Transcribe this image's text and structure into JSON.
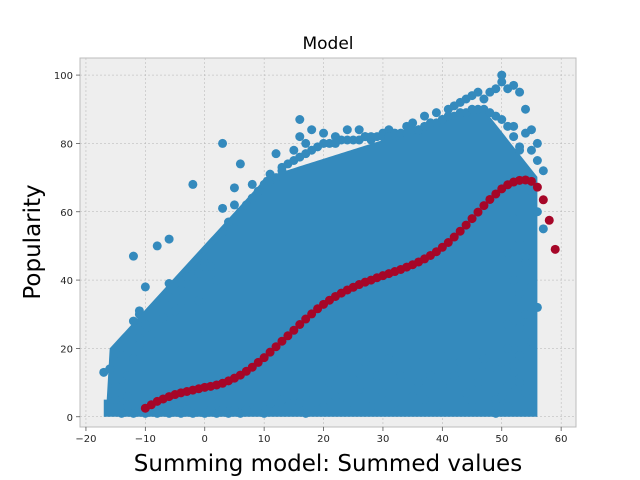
{
  "chart_data": {
    "type": "scatter",
    "title": "Model",
    "xlabel": "Summing model: Summed values",
    "ylabel": "Popularity",
    "xlim": [
      -21,
      62.5
    ],
    "ylim": [
      -3,
      105
    ],
    "x_ticks": [
      "−20",
      "−10",
      "0",
      "10",
      "20",
      "30",
      "40",
      "50",
      "60"
    ],
    "y_ticks": [
      "0",
      "20",
      "40",
      "60",
      "80",
      "100"
    ],
    "x_tick_values": [
      -20,
      -10,
      0,
      10,
      20,
      30,
      40,
      50,
      60
    ],
    "y_tick_values": [
      0,
      20,
      40,
      60,
      80,
      100
    ],
    "grid": true,
    "series": [
      {
        "color": "#348ABD",
        "role": "observations",
        "points": [
          [
            -17,
            13
          ],
          [
            -16,
            14
          ],
          [
            -12,
            47
          ],
          [
            -11,
            23
          ],
          [
            -11,
            30
          ],
          [
            -10,
            38
          ],
          [
            -8,
            50
          ],
          [
            -6,
            52
          ],
          [
            -6,
            39
          ],
          [
            -4,
            32
          ],
          [
            -2,
            68
          ],
          [
            -1,
            34
          ],
          [
            0,
            45
          ],
          [
            0,
            25
          ],
          [
            2,
            40
          ],
          [
            3,
            61
          ],
          [
            3,
            80
          ],
          [
            5,
            67
          ],
          [
            5,
            62
          ],
          [
            6,
            74
          ],
          [
            8,
            68
          ],
          [
            10,
            66
          ],
          [
            11,
            71
          ],
          [
            12,
            77
          ],
          [
            13,
            73
          ],
          [
            15,
            78
          ],
          [
            16,
            82
          ],
          [
            16,
            87
          ],
          [
            17,
            80
          ],
          [
            18,
            84
          ],
          [
            20,
            83
          ],
          [
            22,
            82
          ],
          [
            24,
            84
          ],
          [
            26,
            84
          ],
          [
            27,
            82
          ],
          [
            28,
            81
          ],
          [
            30,
            83
          ],
          [
            31,
            84
          ],
          [
            32,
            82
          ],
          [
            34,
            85
          ],
          [
            35,
            86
          ],
          [
            36,
            84
          ],
          [
            37,
            88
          ],
          [
            38,
            86
          ],
          [
            39,
            89
          ],
          [
            40,
            87
          ],
          [
            41,
            90
          ],
          [
            42,
            91
          ],
          [
            43,
            92
          ],
          [
            44,
            93
          ],
          [
            45,
            94
          ],
          [
            46,
            95
          ],
          [
            47,
            93
          ],
          [
            48,
            95
          ],
          [
            49,
            96
          ],
          [
            50,
            98
          ],
          [
            50,
            100
          ],
          [
            51,
            96
          ],
          [
            52,
            97
          ],
          [
            53,
            95
          ],
          [
            54,
            90
          ],
          [
            55,
            84
          ],
          [
            55,
            78
          ],
          [
            56,
            80
          ],
          [
            52,
            85
          ],
          [
            53,
            79
          ],
          [
            54,
            83
          ],
          [
            56,
            75
          ],
          [
            57,
            72
          ],
          [
            51,
            48
          ],
          [
            52,
            40
          ],
          [
            53,
            36
          ],
          [
            54,
            47
          ],
          [
            51,
            27
          ],
          [
            52,
            20
          ],
          [
            53,
            18
          ],
          [
            54,
            30
          ],
          [
            55,
            22
          ],
          [
            50,
            16
          ],
          [
            51,
            9
          ],
          [
            52,
            13
          ],
          [
            53,
            11
          ],
          [
            54,
            7
          ],
          [
            55,
            3
          ],
          [
            48,
            14
          ],
          [
            49,
            5
          ],
          [
            46,
            10
          ],
          [
            47,
            17
          ],
          [
            44,
            7
          ],
          [
            45,
            3
          ],
          [
            42,
            12
          ],
          [
            43,
            16
          ],
          [
            40,
            9
          ],
          [
            41,
            18
          ],
          [
            38,
            12
          ],
          [
            39,
            3
          ],
          [
            36,
            10
          ],
          [
            37,
            5
          ],
          [
            34,
            14
          ],
          [
            35,
            6
          ],
          [
            32,
            4
          ],
          [
            33,
            12
          ],
          [
            30,
            7
          ],
          [
            31,
            17
          ],
          [
            28,
            3
          ],
          [
            29,
            12
          ],
          [
            26,
            8
          ],
          [
            27,
            16
          ],
          [
            24,
            4
          ],
          [
            25,
            11
          ],
          [
            22,
            6
          ],
          [
            23,
            14
          ],
          [
            20,
            3
          ],
          [
            21,
            10
          ],
          [
            18,
            7
          ],
          [
            19,
            2
          ],
          [
            16,
            4
          ],
          [
            17,
            1
          ],
          [
            14,
            3
          ],
          [
            15,
            6
          ],
          [
            12,
            2
          ],
          [
            13,
            5
          ],
          [
            10,
            1
          ],
          [
            11,
            4
          ],
          [
            8,
            2
          ],
          [
            9,
            3
          ],
          [
            6,
            1
          ],
          [
            7,
            2
          ],
          [
            4,
            1
          ],
          [
            5,
            2
          ],
          [
            2,
            1
          ],
          [
            3,
            2
          ],
          [
            0,
            1
          ],
          [
            1,
            2
          ],
          [
            -2,
            1
          ],
          [
            -1,
            2
          ],
          [
            -4,
            1
          ],
          [
            -3,
            2
          ],
          [
            -6,
            1
          ],
          [
            -5,
            2
          ],
          [
            -8,
            1
          ],
          [
            -7,
            2
          ],
          [
            -10,
            1
          ],
          [
            -9,
            2
          ],
          [
            -12,
            1
          ],
          [
            -11,
            2
          ],
          [
            -14,
            1
          ],
          [
            -13,
            3
          ],
          [
            -15,
            5
          ],
          [
            -14,
            9
          ],
          [
            -13,
            6
          ],
          [
            -14,
            18
          ],
          [
            -15,
            9
          ],
          [
            -13,
            12
          ],
          [
            -12,
            17
          ],
          [
            -11,
            21
          ],
          [
            -12,
            28
          ],
          [
            -11,
            31
          ],
          [
            -10,
            27
          ],
          [
            -9,
            24
          ],
          [
            -8,
            33
          ],
          [
            -7,
            29
          ],
          [
            -6,
            35
          ],
          [
            -5,
            31
          ],
          [
            -4,
            37
          ],
          [
            -3,
            41
          ],
          [
            -2,
            44
          ],
          [
            -1,
            42
          ],
          [
            0,
            47
          ],
          [
            1,
            44
          ],
          [
            2,
            51
          ],
          [
            3,
            54
          ],
          [
            4,
            57
          ],
          [
            5,
            55
          ],
          [
            6,
            60
          ],
          [
            7,
            62
          ],
          [
            8,
            64
          ],
          [
            9,
            66
          ],
          [
            10,
            68
          ],
          [
            11,
            69
          ],
          [
            12,
            70
          ],
          [
            13,
            72
          ],
          [
            14,
            74
          ],
          [
            15,
            75
          ],
          [
            16,
            76
          ],
          [
            17,
            77
          ],
          [
            18,
            78
          ],
          [
            19,
            79
          ],
          [
            20,
            80
          ],
          [
            21,
            80
          ],
          [
            22,
            80
          ],
          [
            23,
            81
          ],
          [
            24,
            81
          ],
          [
            25,
            81
          ],
          [
            26,
            81
          ],
          [
            27,
            82
          ],
          [
            28,
            82
          ],
          [
            29,
            82
          ],
          [
            30,
            82
          ],
          [
            31,
            82
          ],
          [
            32,
            83
          ],
          [
            33,
            83
          ],
          [
            34,
            83
          ],
          [
            35,
            84
          ],
          [
            36,
            84
          ],
          [
            37,
            85
          ],
          [
            38,
            86
          ],
          [
            39,
            86
          ],
          [
            40,
            87
          ],
          [
            41,
            88
          ],
          [
            42,
            88
          ],
          [
            43,
            89
          ],
          [
            44,
            89
          ],
          [
            45,
            90
          ],
          [
            46,
            90
          ],
          [
            47,
            90
          ],
          [
            48,
            89
          ],
          [
            49,
            88
          ],
          [
            50,
            87
          ],
          [
            51,
            85
          ],
          [
            52,
            82
          ],
          [
            53,
            78
          ],
          [
            54,
            72
          ],
          [
            55,
            66
          ],
          [
            56,
            60
          ],
          [
            57,
            55
          ],
          [
            52,
            58
          ],
          [
            53,
            52
          ],
          [
            54,
            45
          ],
          [
            55,
            38
          ],
          [
            56,
            32
          ],
          [
            52,
            32
          ],
          [
            53,
            26
          ],
          [
            51,
            20
          ],
          [
            52,
            15
          ],
          [
            53,
            10
          ],
          [
            50,
            6
          ],
          [
            51,
            3
          ],
          [
            49,
            1
          ],
          [
            48,
            2
          ]
        ]
      },
      {
        "color": "#A60628",
        "role": "model",
        "points": [
          [
            -10,
            2.5
          ],
          [
            -9,
            3.5
          ],
          [
            -8,
            4.5
          ],
          [
            -7,
            5.2
          ],
          [
            -6,
            5.9
          ],
          [
            -5,
            6.5
          ],
          [
            -4,
            7.0
          ],
          [
            -3,
            7.4
          ],
          [
            -2,
            7.8
          ],
          [
            -1,
            8.2
          ],
          [
            0,
            8.6
          ],
          [
            1,
            8.9
          ],
          [
            2,
            9.3
          ],
          [
            3,
            9.8
          ],
          [
            4,
            10.5
          ],
          [
            5,
            11.3
          ],
          [
            6,
            12.2
          ],
          [
            7,
            13.3
          ],
          [
            8,
            14.5
          ],
          [
            9,
            15.9
          ],
          [
            10,
            17.3
          ],
          [
            11,
            18.9
          ],
          [
            12,
            20.5
          ],
          [
            13,
            22.1
          ],
          [
            14,
            23.7
          ],
          [
            15,
            25.3
          ],
          [
            16,
            27.0
          ],
          [
            17,
            28.6
          ],
          [
            18,
            30.1
          ],
          [
            19,
            31.6
          ],
          [
            20,
            32.9
          ],
          [
            21,
            34.1
          ],
          [
            22,
            35.2
          ],
          [
            23,
            36.2
          ],
          [
            24,
            37.1
          ],
          [
            25,
            37.9
          ],
          [
            26,
            38.7
          ],
          [
            27,
            39.4
          ],
          [
            28,
            40.0
          ],
          [
            29,
            40.7
          ],
          [
            30,
            41.3
          ],
          [
            31,
            41.9
          ],
          [
            32,
            42.5
          ],
          [
            33,
            43.1
          ],
          [
            34,
            43.8
          ],
          [
            35,
            44.5
          ],
          [
            36,
            45.3
          ],
          [
            37,
            46.2
          ],
          [
            38,
            47.2
          ],
          [
            39,
            48.3
          ],
          [
            40,
            49.6
          ],
          [
            41,
            51.0
          ],
          [
            42,
            52.6
          ],
          [
            43,
            54.3
          ],
          [
            44,
            56.1
          ],
          [
            45,
            58.0
          ],
          [
            46,
            59.9
          ],
          [
            47,
            61.8
          ],
          [
            48,
            63.6
          ],
          [
            49,
            65.2
          ],
          [
            50,
            66.7
          ],
          [
            51,
            67.9
          ],
          [
            52,
            68.7
          ],
          [
            53,
            69.2
          ],
          [
            54,
            69.3
          ],
          [
            55,
            68.9
          ],
          [
            56,
            67.2
          ],
          [
            57,
            63.5
          ],
          [
            58,
            57.5
          ],
          [
            59,
            49.0
          ]
        ]
      }
    ]
  }
}
